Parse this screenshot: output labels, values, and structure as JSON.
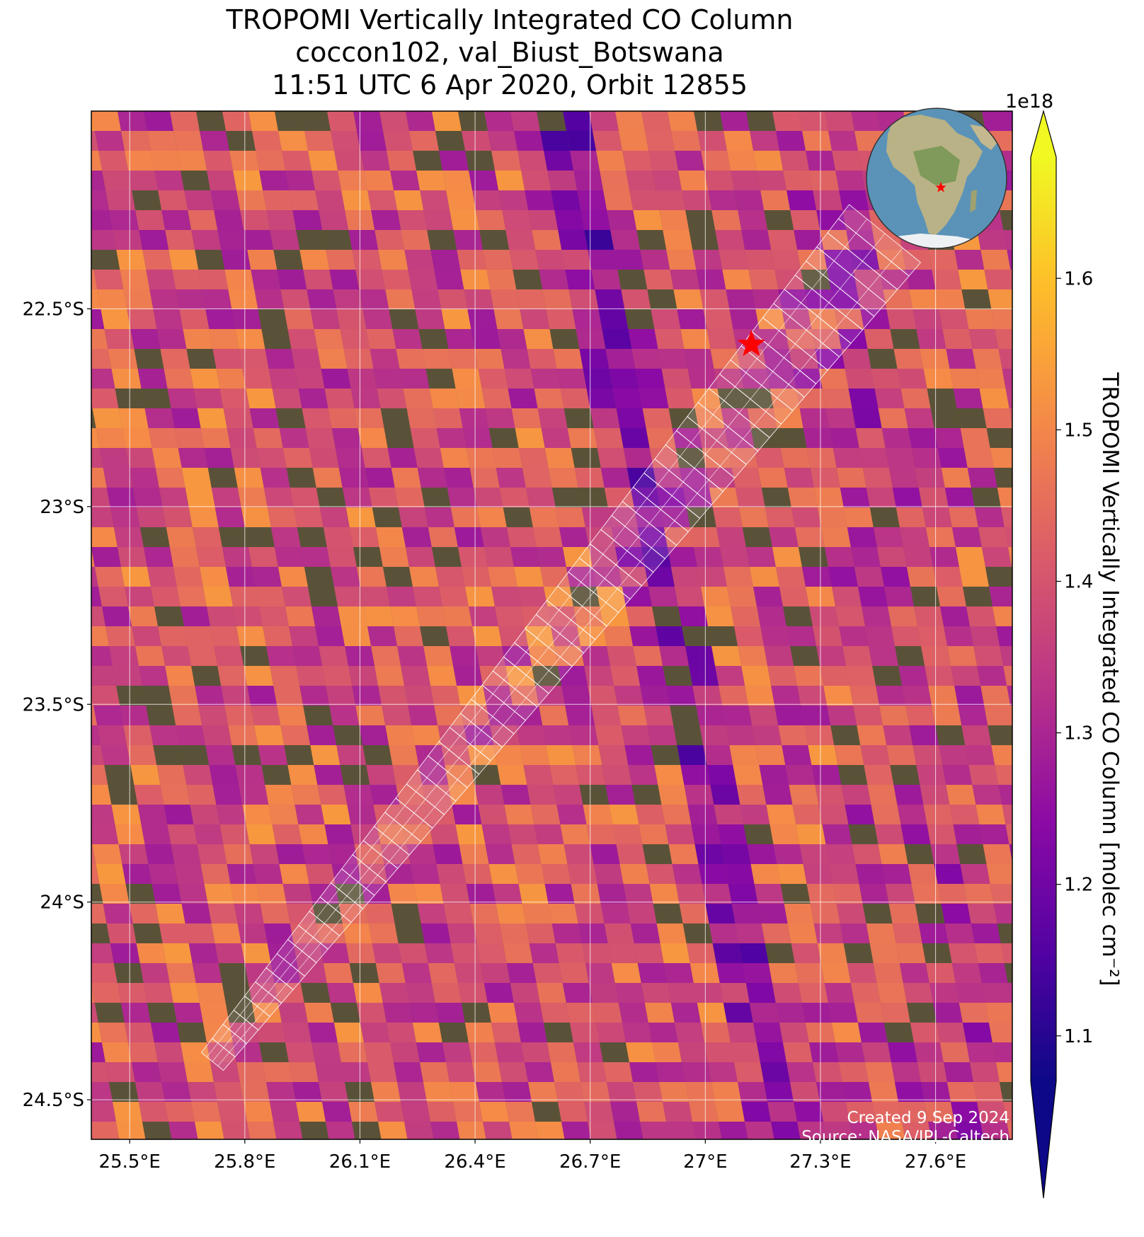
{
  "title": {
    "line1": "TROPOMI Vertically Integrated CO Column",
    "line2": "coccon102, val_Biust_Botswana",
    "line3": "11:51 UTC 6 Apr 2020, Orbit 12855"
  },
  "map": {
    "lon_range": [
      25.4,
      27.8
    ],
    "lat_range": [
      -24.6,
      -22.0
    ],
    "lon_ticks": [
      25.5,
      25.8,
      26.1,
      26.4,
      26.7,
      27.0,
      27.3,
      27.6
    ],
    "lon_tick_labels": [
      "25.5°E",
      "25.8°E",
      "26.1°E",
      "26.4°E",
      "26.7°E",
      "27°E",
      "27.3°E",
      "27.6°E"
    ],
    "lat_ticks": [
      -22.5,
      -23.0,
      -23.5,
      -24.0,
      -24.5
    ],
    "lat_tick_labels": [
      "22.5°S",
      "23°S",
      "23.5°S",
      "24°S",
      "24.5°S"
    ],
    "grid": true,
    "background": "satellite imagery",
    "site_marker": {
      "lon": 27.12,
      "lat": -22.59,
      "symbol": "star",
      "color": "#ff0000"
    },
    "footprint_color": "#ffffff",
    "inset_globe": {
      "center": "Africa",
      "marker_color": "#ff0000",
      "location": "top-right"
    }
  },
  "colorbar": {
    "colormap": "plasma",
    "min": 1.07e+18,
    "max": 1.68e+18,
    "ticks": [
      1.1,
      1.2,
      1.3,
      1.4,
      1.5,
      1.6
    ],
    "tick_labels": [
      "1.1",
      "1.2",
      "1.3",
      "1.4",
      "1.5",
      "1.6"
    ],
    "exponent_label": "1e18",
    "label": "TROPOMI Vertically Integrated CO Column [molec cm⁻²]",
    "extend": "both"
  },
  "credits": {
    "created": "Created 9 Sep 2024",
    "source": "Source: NASA/JPL-Caltech"
  },
  "colors": {
    "plasma_stops": [
      "#0d0887",
      "#5302a3",
      "#8b0aa5",
      "#b83289",
      "#db5c68",
      "#f48849",
      "#febd2a",
      "#f0f921"
    ],
    "terrain_dark": "#5a5238",
    "terrain_mid": "#7d6a45",
    "site_red": "#ff0000"
  }
}
